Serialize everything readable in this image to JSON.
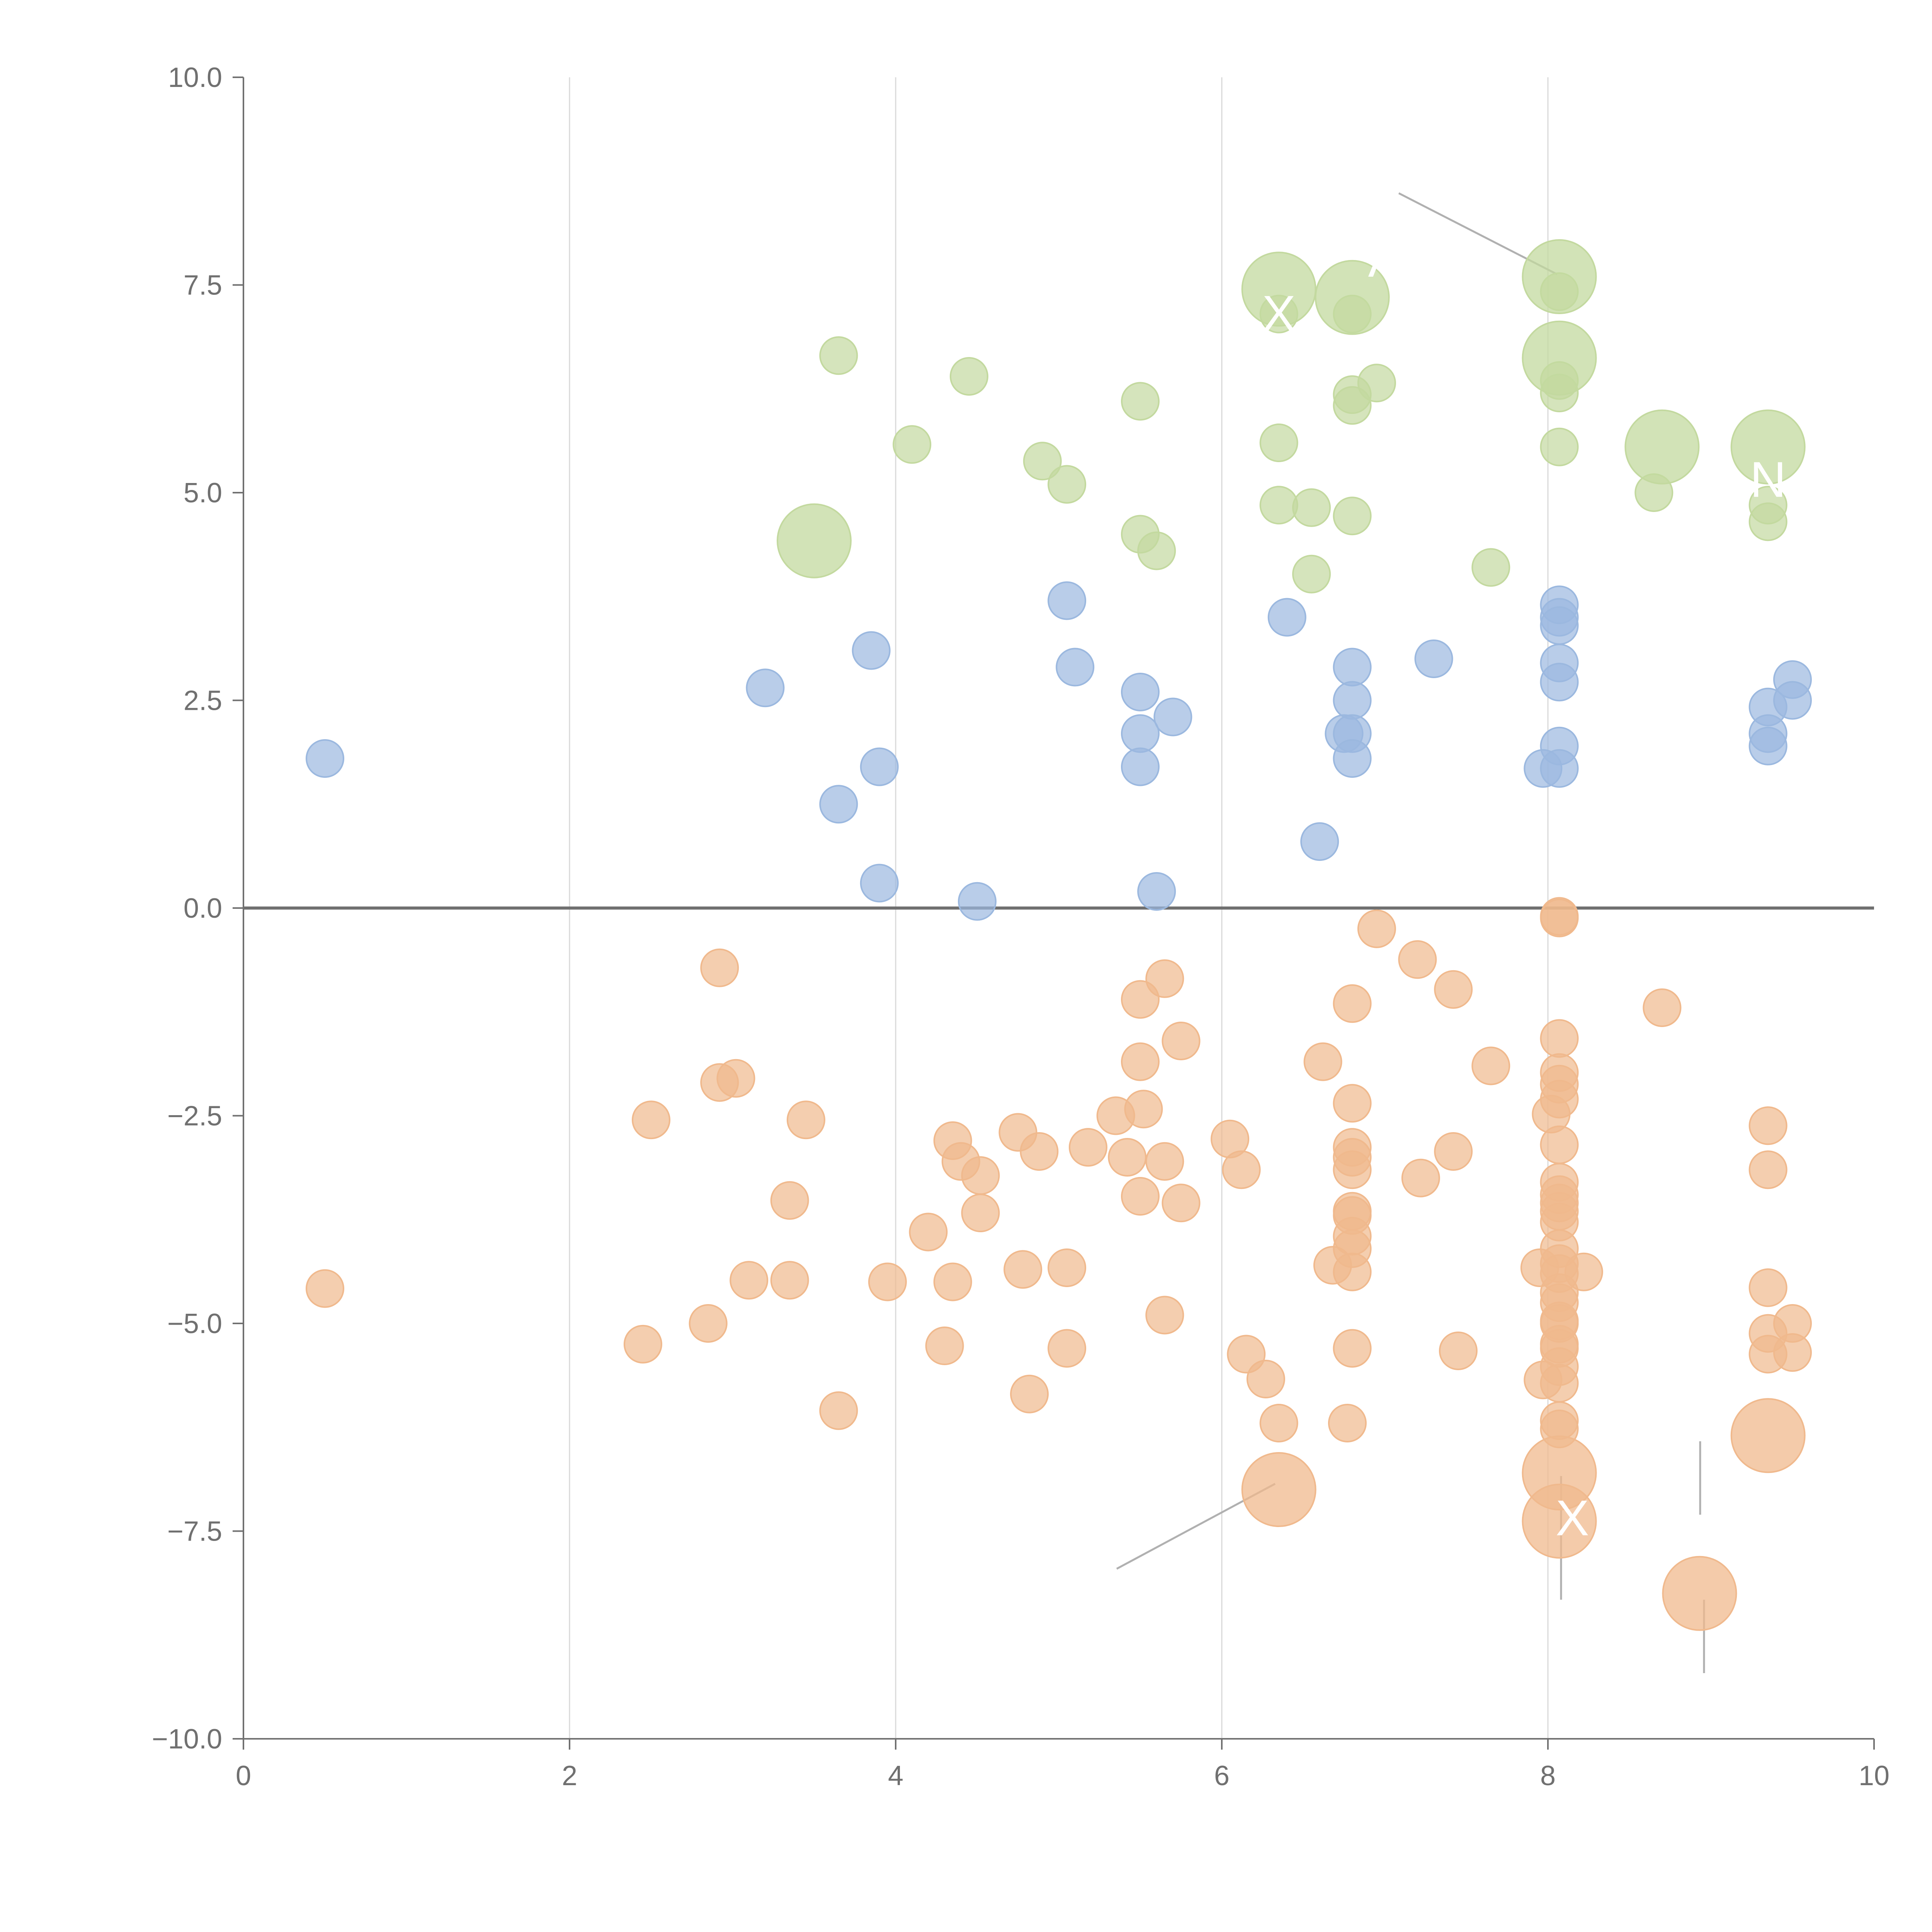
{
  "chart_data": {
    "type": "scatter",
    "title": "",
    "xlabel": "",
    "ylabel": "",
    "xlim": [
      0,
      10
    ],
    "ylim": [
      -10,
      10
    ],
    "grid": "vertical lines at major x ticks",
    "x_ticks": [
      "0",
      "2",
      "4",
      "6",
      "8",
      "10"
    ],
    "y_ticks": [
      "10.0",
      "7.5",
      "5.0",
      "2.5",
      "0.0",
      "−2.5",
      "−5.0",
      "−7.5",
      "−10.0"
    ],
    "x_tick_values": [
      0,
      2,
      4,
      6,
      8,
      10
    ],
    "y_tick_values": [
      10,
      7.5,
      5,
      2.5,
      0,
      -2.5,
      -5,
      -7.5,
      -10
    ],
    "series": [
      {
        "color": "#9bb8df",
        "points": [
          {
            "x": 0.5,
            "y": 1.8
          },
          {
            "x": 3.2,
            "y": 2.65
          },
          {
            "x": 3.85,
            "y": 3.1
          },
          {
            "x": 3.9,
            "y": 1.7
          },
          {
            "x": 3.65,
            "y": 1.25
          },
          {
            "x": 3.9,
            "y": 0.3
          },
          {
            "x": 4.5,
            "y": 0.08
          },
          {
            "x": 5.05,
            "y": 3.7
          },
          {
            "x": 5.1,
            "y": 2.9
          },
          {
            "x": 5.5,
            "y": 2.6
          },
          {
            "x": 5.5,
            "y": 2.1
          },
          {
            "x": 5.7,
            "y": 2.3
          },
          {
            "x": 5.5,
            "y": 1.7
          },
          {
            "x": 5.6,
            "y": 0.2
          },
          {
            "x": 6.4,
            "y": 3.5
          },
          {
            "x": 6.8,
            "y": 2.9
          },
          {
            "x": 6.8,
            "y": 2.5
          },
          {
            "x": 6.75,
            "y": 2.1
          },
          {
            "x": 6.8,
            "y": 2.1
          },
          {
            "x": 6.8,
            "y": 1.8
          },
          {
            "x": 6.6,
            "y": 0.8
          },
          {
            "x": 7.3,
            "y": 3.0
          },
          {
            "x": 8.07,
            "y": 3.65
          },
          {
            "x": 8.07,
            "y": 3.5
          },
          {
            "x": 8.07,
            "y": 3.4
          },
          {
            "x": 8.07,
            "y": 2.95
          },
          {
            "x": 8.07,
            "y": 2.72
          },
          {
            "x": 8.07,
            "y": 1.95
          },
          {
            "x": 7.97,
            "y": 1.68
          },
          {
            "x": 8.07,
            "y": 1.68
          },
          {
            "x": 9.35,
            "y": 2.42
          },
          {
            "x": 9.35,
            "y": 2.1
          },
          {
            "x": 9.35,
            "y": 1.95
          },
          {
            "x": 9.5,
            "y": 2.75
          },
          {
            "x": 9.5,
            "y": 2.5
          }
        ]
      },
      {
        "color": "#c3d99f",
        "points": [
          {
            "x": 3.65,
            "y": 6.65
          },
          {
            "x": 4.45,
            "y": 6.4
          },
          {
            "x": 4.1,
            "y": 5.58
          },
          {
            "x": 4.9,
            "y": 5.38
          },
          {
            "x": 5.05,
            "y": 5.1
          },
          {
            "x": 5.5,
            "y": 6.1
          },
          {
            "x": 5.5,
            "y": 4.5
          },
          {
            "x": 5.6,
            "y": 4.3
          },
          {
            "x": 6.35,
            "y": 5.6
          },
          {
            "x": 6.35,
            "y": 4.85
          },
          {
            "x": 6.55,
            "y": 4.82
          },
          {
            "x": 6.55,
            "y": 4.02
          },
          {
            "x": 6.8,
            "y": 6.18
          },
          {
            "x": 6.8,
            "y": 6.05
          },
          {
            "x": 6.95,
            "y": 6.32
          },
          {
            "x": 6.8,
            "y": 4.72
          },
          {
            "x": 6.8,
            "y": 7.15
          },
          {
            "x": 6.35,
            "y": 7.15
          },
          {
            "x": 7.65,
            "y": 4.1
          },
          {
            "x": 8.07,
            "y": 7.42
          },
          {
            "x": 8.07,
            "y": 6.35
          },
          {
            "x": 8.07,
            "y": 6.2
          },
          {
            "x": 8.07,
            "y": 5.55
          },
          {
            "x": 8.65,
            "y": 5.0
          },
          {
            "x": 9.35,
            "y": 4.65
          },
          {
            "x": 9.35,
            "y": 4.85
          }
        ],
        "large_points": [
          {
            "x": 3.5,
            "y": 4.42
          },
          {
            "x": 6.35,
            "y": 7.45
          },
          {
            "x": 6.8,
            "y": 7.35
          },
          {
            "x": 8.07,
            "y": 7.6
          },
          {
            "x": 8.07,
            "y": 6.62
          },
          {
            "x": 8.7,
            "y": 5.55
          },
          {
            "x": 9.35,
            "y": 5.55
          }
        ]
      },
      {
        "color": "#f0b98d",
        "points": [
          {
            "x": 0.5,
            "y": -4.58
          },
          {
            "x": 2.45,
            "y": -5.25
          },
          {
            "x": 2.5,
            "y": -2.55
          },
          {
            "x": 2.85,
            "y": -5.0
          },
          {
            "x": 2.92,
            "y": -0.72
          },
          {
            "x": 2.92,
            "y": -2.1
          },
          {
            "x": 3.02,
            "y": -2.05
          },
          {
            "x": 3.1,
            "y": -4.48
          },
          {
            "x": 3.35,
            "y": -3.52
          },
          {
            "x": 3.35,
            "y": -4.48
          },
          {
            "x": 3.45,
            "y": -2.55
          },
          {
            "x": 3.65,
            "y": -6.05
          },
          {
            "x": 3.95,
            "y": -4.5
          },
          {
            "x": 4.2,
            "y": -3.9
          },
          {
            "x": 4.3,
            "y": -5.27
          },
          {
            "x": 4.35,
            "y": -4.5
          },
          {
            "x": 4.35,
            "y": -2.8
          },
          {
            "x": 4.4,
            "y": -3.05
          },
          {
            "x": 4.52,
            "y": -3.22
          },
          {
            "x": 4.52,
            "y": -3.67
          },
          {
            "x": 4.75,
            "y": -2.7
          },
          {
            "x": 4.78,
            "y": -4.35
          },
          {
            "x": 4.82,
            "y": -5.85
          },
          {
            "x": 4.88,
            "y": -2.93
          },
          {
            "x": 5.05,
            "y": -5.3
          },
          {
            "x": 5.05,
            "y": -4.33
          },
          {
            "x": 5.18,
            "y": -2.88
          },
          {
            "x": 5.35,
            "y": -2.5
          },
          {
            "x": 5.42,
            "y": -3.0
          },
          {
            "x": 5.5,
            "y": -1.1
          },
          {
            "x": 5.5,
            "y": -1.85
          },
          {
            "x": 5.52,
            "y": -2.42
          },
          {
            "x": 5.5,
            "y": -3.47
          },
          {
            "x": 5.65,
            "y": -0.85
          },
          {
            "x": 5.65,
            "y": -3.05
          },
          {
            "x": 5.65,
            "y": -4.9
          },
          {
            "x": 5.75,
            "y": -1.6
          },
          {
            "x": 5.75,
            "y": -3.55
          },
          {
            "x": 6.05,
            "y": -2.78
          },
          {
            "x": 6.12,
            "y": -3.15
          },
          {
            "x": 6.15,
            "y": -5.37
          },
          {
            "x": 6.27,
            "y": -5.67
          },
          {
            "x": 6.35,
            "y": -6.2
          },
          {
            "x": 6.62,
            "y": -1.85
          },
          {
            "x": 6.68,
            "y": -4.3
          },
          {
            "x": 6.77,
            "y": -6.2
          },
          {
            "x": 6.8,
            "y": -1.15
          },
          {
            "x": 6.8,
            "y": -2.35
          },
          {
            "x": 6.8,
            "y": -2.88
          },
          {
            "x": 6.8,
            "y": -3.0
          },
          {
            "x": 6.8,
            "y": -3.15
          },
          {
            "x": 6.8,
            "y": -3.65
          },
          {
            "x": 6.8,
            "y": -3.7
          },
          {
            "x": 6.8,
            "y": -3.95
          },
          {
            "x": 6.8,
            "y": -4.1
          },
          {
            "x": 6.8,
            "y": -4.38
          },
          {
            "x": 6.8,
            "y": -5.3
          },
          {
            "x": 6.95,
            "y": -0.25
          },
          {
            "x": 7.2,
            "y": -0.62
          },
          {
            "x": 7.22,
            "y": -3.25
          },
          {
            "x": 7.42,
            "y": -0.98
          },
          {
            "x": 7.42,
            "y": -2.93
          },
          {
            "x": 7.45,
            "y": -5.33
          },
          {
            "x": 7.65,
            "y": -1.9
          },
          {
            "x": 7.95,
            "y": -4.33
          },
          {
            "x": 7.97,
            "y": -5.68
          },
          {
            "x": 8.02,
            "y": -2.48
          },
          {
            "x": 8.07,
            "y": -0.1
          },
          {
            "x": 8.07,
            "y": -0.12
          },
          {
            "x": 8.07,
            "y": -1.57
          },
          {
            "x": 8.07,
            "y": -1.98
          },
          {
            "x": 8.07,
            "y": -2.12
          },
          {
            "x": 8.07,
            "y": -2.3
          },
          {
            "x": 8.07,
            "y": -2.85
          },
          {
            "x": 8.07,
            "y": -3.3
          },
          {
            "x": 8.07,
            "y": -3.45
          },
          {
            "x": 8.07,
            "y": -3.55
          },
          {
            "x": 8.07,
            "y": -3.65
          },
          {
            "x": 8.07,
            "y": -3.78
          },
          {
            "x": 8.07,
            "y": -4.1
          },
          {
            "x": 8.07,
            "y": -4.28
          },
          {
            "x": 8.07,
            "y": -4.4
          },
          {
            "x": 8.07,
            "y": -4.63
          },
          {
            "x": 8.07,
            "y": -4.75
          },
          {
            "x": 8.07,
            "y": -4.97
          },
          {
            "x": 8.07,
            "y": -5.0
          },
          {
            "x": 8.07,
            "y": -5.25
          },
          {
            "x": 8.07,
            "y": -5.3
          },
          {
            "x": 8.07,
            "y": -5.52
          },
          {
            "x": 8.07,
            "y": -5.72
          },
          {
            "x": 8.07,
            "y": -6.17
          },
          {
            "x": 8.07,
            "y": -6.27
          },
          {
            "x": 8.22,
            "y": -4.38
          },
          {
            "x": 8.7,
            "y": -1.2
          },
          {
            "x": 9.35,
            "y": -2.62
          },
          {
            "x": 9.35,
            "y": -3.15
          },
          {
            "x": 9.35,
            "y": -4.57
          },
          {
            "x": 9.35,
            "y": -5.12
          },
          {
            "x": 9.35,
            "y": -5.37
          },
          {
            "x": 9.5,
            "y": -5.0
          },
          {
            "x": 9.5,
            "y": -5.35
          }
        ],
        "large_points": [
          {
            "x": 6.35,
            "y": -7.0
          },
          {
            "x": 8.07,
            "y": -6.8
          },
          {
            "x": 8.07,
            "y": -7.38
          },
          {
            "x": 8.93,
            "y": -8.25
          },
          {
            "x": 9.35,
            "y": -6.35
          }
        ]
      }
    ],
    "bubble_labels": [
      {
        "text": "A",
        "x": 7.0,
        "y": 7.6
      },
      {
        "text": "X",
        "x": 6.35,
        "y": 6.95
      },
      {
        "text": "N",
        "x": 9.35,
        "y": 4.95
      },
      {
        "text": "X",
        "x": 8.15,
        "y": -7.55
      }
    ]
  }
}
